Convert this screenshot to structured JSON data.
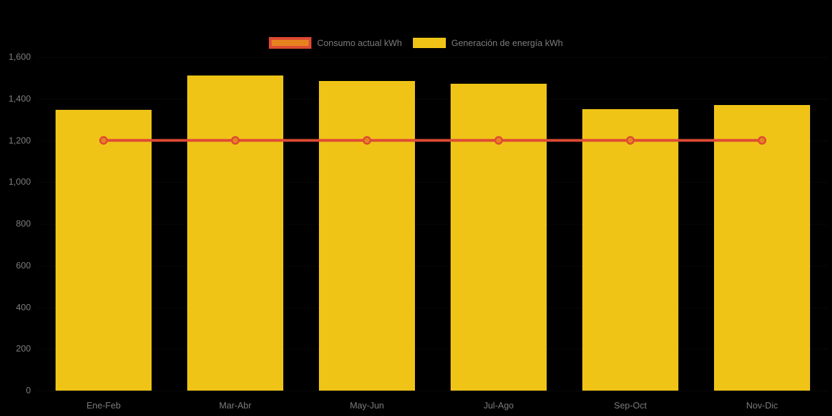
{
  "background": "#000000",
  "colors": {
    "bar": "#F0C417",
    "line": "#DE4A34",
    "marker_fill": "#E6831E",
    "axis_text": "#7d7d7d"
  },
  "legend": {
    "consumo_label": "Consumo actual kWh",
    "generacion_label": "Generación de energía kWh"
  },
  "chart_data": {
    "type": "bar",
    "title": "",
    "xlabel": "",
    "ylabel": "",
    "categories": [
      "Ene-Feb",
      "Mar-Abr",
      "May-Jun",
      "Jul-Ago",
      "Sep-Oct",
      "Nov-Dic"
    ],
    "series": [
      {
        "name": "Consumo actual kWh",
        "type": "line",
        "color": "#DE4A34",
        "marker_fill": "#E6831E",
        "values": [
          1200,
          1200,
          1200,
          1200,
          1200,
          1200
        ]
      },
      {
        "name": "Generación de energía kWh",
        "type": "bar",
        "color": "#F0C417",
        "values": [
          1345,
          1510,
          1485,
          1470,
          1350,
          1370
        ]
      }
    ],
    "ylim": [
      0,
      1600
    ],
    "ytick_step": 200,
    "ytick_labels": [
      "0",
      "200",
      "400",
      "600",
      "800",
      "1,000",
      "1,200",
      "1,400",
      "1,600"
    ],
    "grid": false,
    "legend_position": "top-center"
  }
}
